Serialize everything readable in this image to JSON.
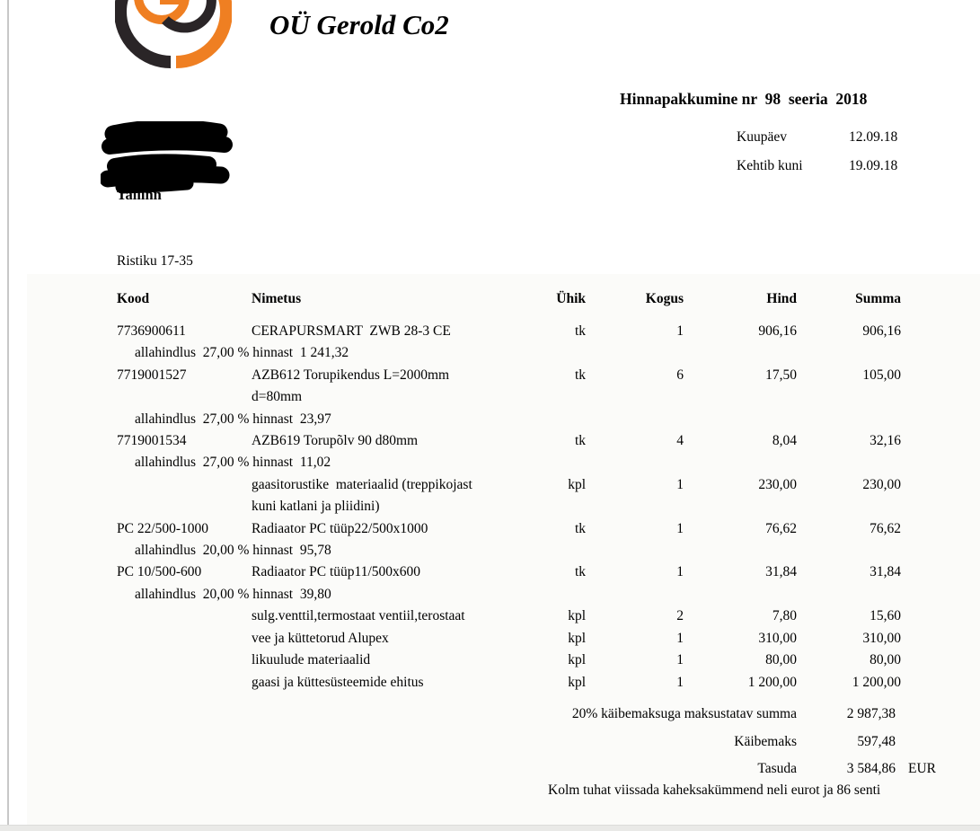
{
  "colors": {
    "logo_orange": "#ef7f22",
    "logo_black": "#2a2527",
    "panel_bg": "#fbfbf9",
    "edge_line": "#c8c8c8",
    "bottom_strip": "#e9e9e7",
    "text": "#000000"
  },
  "header": {
    "company_name": "OÜ Gerold Co2",
    "logo_letters": "GC",
    "doc_title": "Hinnapakkumine nr  98  seeria  2018",
    "date_label": "Kuupäev",
    "date_value": "12.09.18",
    "valid_until_label": "Kehtib kuni",
    "valid_until_value": "19.09.18",
    "customer_city": "Tallinn",
    "customer_address": "Ristiku 17-35"
  },
  "table": {
    "headers": {
      "kood": "Kood",
      "nimetus": "Nimetus",
      "yhik": "Ühik",
      "kogus": "Kogus",
      "hind": "Hind",
      "summa": "Summa"
    },
    "rows": [
      {
        "code": "7736900611",
        "name_lines": [
          "CERAPURSMART  ZWB 28-3 CE"
        ],
        "unit": "tk",
        "qty": "1",
        "price": "906,16",
        "sum": "906,16",
        "discount": "allahindlus  27,00 % hinnast  1 241,32"
      },
      {
        "code": "7719001527",
        "name_lines": [
          "AZB612 Torupikendus L=2000mm",
          "d=80mm"
        ],
        "unit": "tk",
        "qty": "6",
        "price": "17,50",
        "sum": "105,00",
        "discount": "allahindlus  27,00 % hinnast  23,97"
      },
      {
        "code": "7719001534",
        "name_lines": [
          "AZB619 Torupõlv 90 d80mm"
        ],
        "unit": "tk",
        "qty": "4",
        "price": "8,04",
        "sum": "32,16",
        "discount": "allahindlus  27,00 % hinnast  11,02"
      },
      {
        "code": "",
        "name_lines": [
          "gaasitorustike  materiaalid (treppikojast",
          "kuni katlani ja pliidini)"
        ],
        "unit": "kpl",
        "qty": "1",
        "price": "230,00",
        "sum": "230,00",
        "discount": ""
      },
      {
        "code": "PC 22/500-1000",
        "name_lines": [
          "Radiaator PC tüüp22/500x1000"
        ],
        "unit": "tk",
        "qty": "1",
        "price": "76,62",
        "sum": "76,62",
        "discount": "allahindlus  20,00 % hinnast  95,78"
      },
      {
        "code": "PC 10/500-600",
        "name_lines": [
          "Radiaator PC tüüp11/500x600"
        ],
        "unit": "tk",
        "qty": "1",
        "price": "31,84",
        "sum": "31,84",
        "discount": "allahindlus  20,00 % hinnast  39,80"
      },
      {
        "code": "",
        "name_lines": [
          "sulg.venttil,termostaat ventiil,terostaat"
        ],
        "unit": "kpl",
        "qty": "2",
        "price": "7,80",
        "sum": "15,60",
        "discount": ""
      },
      {
        "code": "",
        "name_lines": [
          "vee ja küttetorud Alupex"
        ],
        "unit": "kpl",
        "qty": "1",
        "price": "310,00",
        "sum": "310,00",
        "discount": ""
      },
      {
        "code": "",
        "name_lines": [
          "likuulude materiaalid"
        ],
        "unit": "kpl",
        "qty": "1",
        "price": "80,00",
        "sum": "80,00",
        "discount": ""
      },
      {
        "code": "",
        "name_lines": [
          "gaasi ja küttesüsteemide ehitus"
        ],
        "unit": "kpl",
        "qty": "1",
        "price": "1 200,00",
        "sum": "1 200,00",
        "discount": ""
      }
    ]
  },
  "totals": {
    "taxable_label": "20% käibemaksuga maksustatav summa",
    "taxable_value": "2 987,38",
    "vat_label": "Käibemaks",
    "vat_value": "597,48",
    "due_label": "Tasuda",
    "due_value": "3 584,86",
    "currency": "EUR",
    "amount_in_words": "Kolm tuhat viissada kaheksakümmend neli eurot ja 86 senti"
  }
}
